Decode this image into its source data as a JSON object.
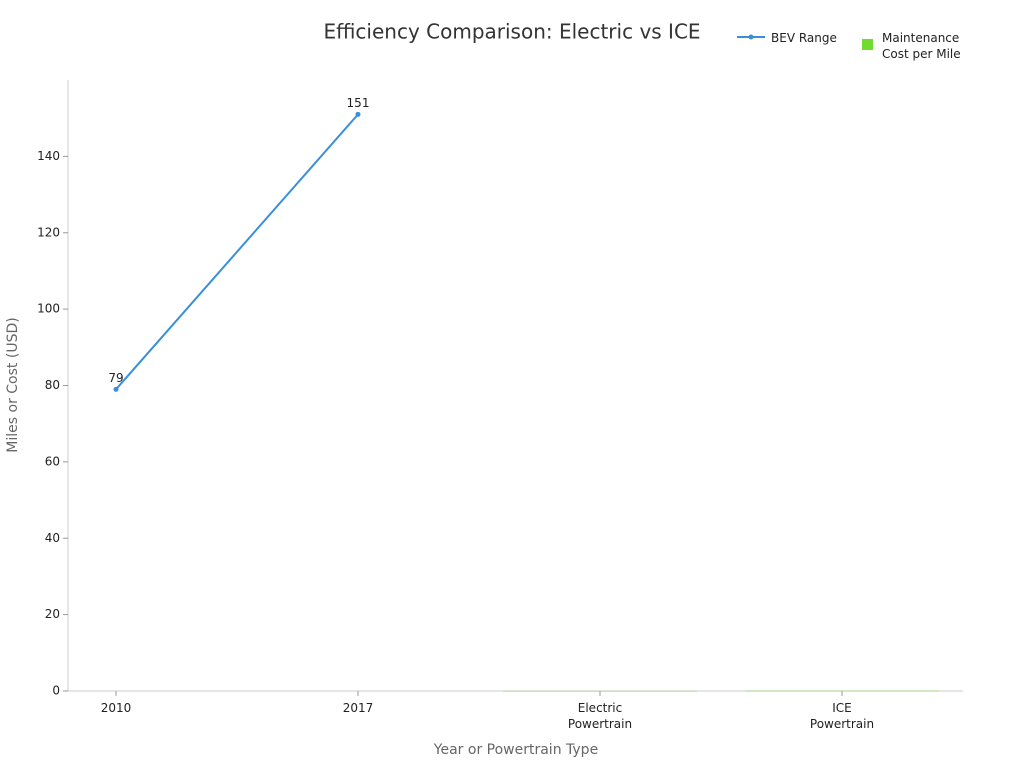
{
  "chart_data": {
    "type": "line-bar",
    "title": "Efficiency Comparison: Electric vs ICE",
    "x_label": "Year or Powertrain Type",
    "y_label": "Miles or Cost (USD)",
    "categories": [
      "2010",
      "2017",
      "Electric Powertrain",
      "ICE Powertrain"
    ],
    "series": [
      {
        "name": "BEV Range",
        "type": "line",
        "color": "#3a8fd9",
        "values": [
          79,
          151,
          null,
          null
        ],
        "show_labels": true
      },
      {
        "name": "Maintenance Cost per Mile",
        "type": "bar",
        "color": "#6fdc2f",
        "values": [
          null,
          null,
          0.03,
          0.06
        ]
      }
    ],
    "ylim": [
      0,
      160
    ],
    "yticks": [
      0,
      20,
      40,
      60,
      80,
      100,
      120,
      140
    ],
    "grid": false,
    "legend": "top-right"
  }
}
